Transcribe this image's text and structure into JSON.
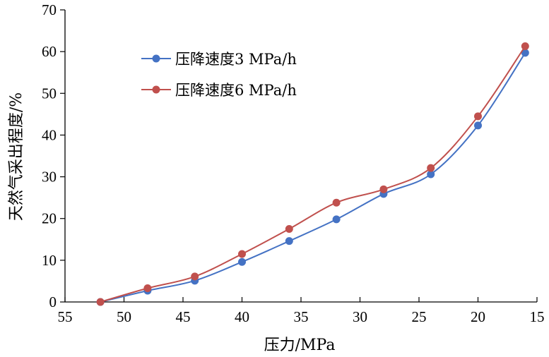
{
  "chart_data": {
    "type": "line",
    "xlabel": "压力/MPa",
    "ylabel": "天然气采出程度/%",
    "x_reversed": true,
    "xlim": [
      55,
      15
    ],
    "ylim": [
      0,
      70
    ],
    "xticks": [
      55,
      50,
      45,
      40,
      35,
      30,
      25,
      20,
      15
    ],
    "yticks": [
      0,
      10,
      20,
      30,
      40,
      50,
      60,
      70
    ],
    "grid": false,
    "legend_position": "top-center",
    "x": [
      52,
      48,
      44,
      40,
      36,
      32,
      28,
      24,
      20,
      16
    ],
    "series": [
      {
        "name": "压降速度3 MPa/h",
        "color": "#4472c4",
        "values": [
          0,
          2.7,
          5.1,
          9.6,
          14.6,
          19.8,
          25.9,
          30.6,
          42.3,
          59.7
        ]
      },
      {
        "name": "压降速度6 MPa/h",
        "color": "#c0504d",
        "values": [
          0,
          3.3,
          6.1,
          11.5,
          17.5,
          23.8,
          27.0,
          32.1,
          44.5,
          61.3
        ]
      }
    ]
  }
}
